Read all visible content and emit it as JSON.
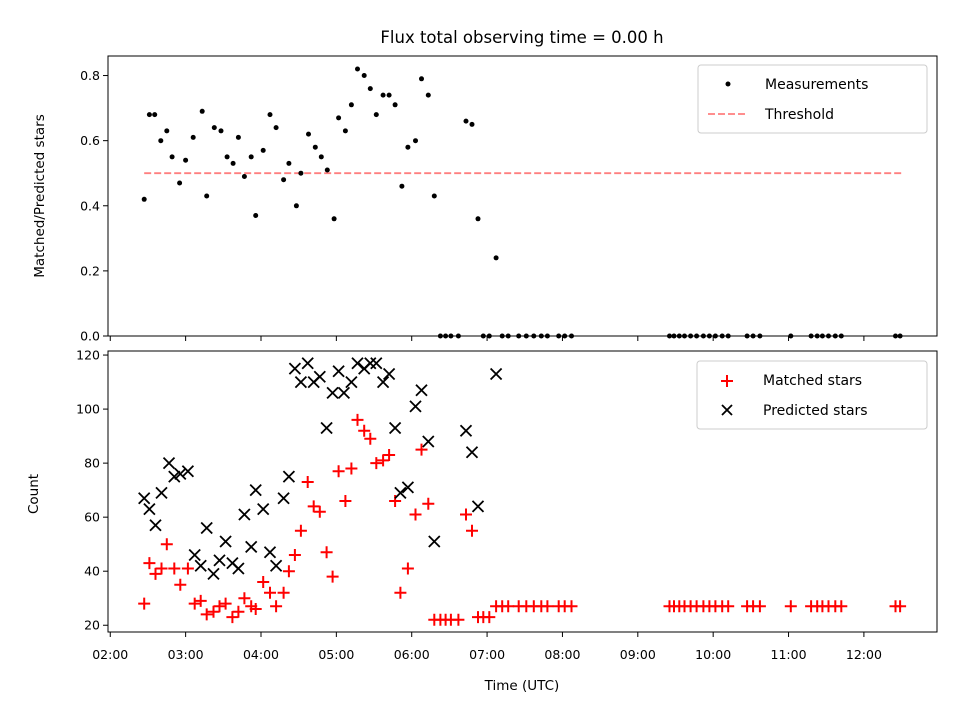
{
  "chart_data": [
    {
      "type": "scatter",
      "title": "Flux total observing time = 0.00 h",
      "xlabel": "",
      "ylabel": "Matched/Predicted stars",
      "xlim_hours": [
        1.97,
        12.97
      ],
      "ylim": [
        0.0,
        0.86
      ],
      "yticks": [
        0.0,
        0.2,
        0.4,
        0.6,
        0.8
      ],
      "ytick_labels": [
        "0.0",
        "0.2",
        "0.4",
        "0.6",
        "0.8"
      ],
      "grid": false,
      "legend_position": "top-right",
      "threshold": {
        "name": "Threshold",
        "value": 0.5,
        "x_range_hours": [
          2.45,
          12.5
        ],
        "color": "#ff7f7f"
      },
      "series": [
        {
          "name": "Measurements",
          "color": "#000000",
          "points": [
            [
              2.45,
              0.42
            ],
            [
              2.52,
              0.68
            ],
            [
              2.59,
              0.68
            ],
            [
              2.67,
              0.6
            ],
            [
              2.75,
              0.63
            ],
            [
              2.82,
              0.55
            ],
            [
              2.92,
              0.47
            ],
            [
              3.0,
              0.54
            ],
            [
              3.1,
              0.61
            ],
            [
              3.22,
              0.69
            ],
            [
              3.28,
              0.43
            ],
            [
              3.38,
              0.64
            ],
            [
              3.47,
              0.63
            ],
            [
              3.55,
              0.55
            ],
            [
              3.63,
              0.53
            ],
            [
              3.7,
              0.61
            ],
            [
              3.78,
              0.49
            ],
            [
              3.87,
              0.55
            ],
            [
              3.93,
              0.37
            ],
            [
              4.03,
              0.57
            ],
            [
              4.12,
              0.68
            ],
            [
              4.2,
              0.64
            ],
            [
              4.3,
              0.48
            ],
            [
              4.37,
              0.53
            ],
            [
              4.47,
              0.4
            ],
            [
              4.53,
              0.5
            ],
            [
              4.63,
              0.62
            ],
            [
              4.72,
              0.58
            ],
            [
              4.8,
              0.55
            ],
            [
              4.88,
              0.51
            ],
            [
              4.97,
              0.36
            ],
            [
              5.03,
              0.67
            ],
            [
              5.12,
              0.63
            ],
            [
              5.2,
              0.71
            ],
            [
              5.28,
              0.82
            ],
            [
              5.37,
              0.8
            ],
            [
              5.45,
              0.76
            ],
            [
              5.53,
              0.68
            ],
            [
              5.62,
              0.74
            ],
            [
              5.7,
              0.74
            ],
            [
              5.78,
              0.71
            ],
            [
              5.87,
              0.46
            ],
            [
              5.95,
              0.58
            ],
            [
              6.05,
              0.6
            ],
            [
              6.13,
              0.79
            ],
            [
              6.22,
              0.74
            ],
            [
              6.3,
              0.43
            ],
            [
              6.38,
              0.0
            ],
            [
              6.45,
              0.0
            ],
            [
              6.52,
              0.0
            ],
            [
              6.62,
              0.0
            ],
            [
              6.72,
              0.66
            ],
            [
              6.8,
              0.65
            ],
            [
              6.88,
              0.36
            ],
            [
              6.95,
              0.0
            ],
            [
              7.03,
              0.0
            ],
            [
              7.12,
              0.24
            ],
            [
              7.2,
              0.0
            ],
            [
              7.28,
              0.0
            ],
            [
              7.42,
              0.0
            ],
            [
              7.52,
              0.0
            ],
            [
              7.62,
              0.0
            ],
            [
              7.72,
              0.0
            ],
            [
              7.8,
              0.0
            ],
            [
              7.95,
              0.0
            ],
            [
              8.03,
              0.0
            ],
            [
              8.12,
              0.0
            ],
            [
              9.42,
              0.0
            ],
            [
              9.48,
              0.0
            ],
            [
              9.55,
              0.0
            ],
            [
              9.62,
              0.0
            ],
            [
              9.7,
              0.0
            ],
            [
              9.78,
              0.0
            ],
            [
              9.87,
              0.0
            ],
            [
              9.95,
              0.0
            ],
            [
              10.03,
              0.0
            ],
            [
              10.12,
              0.0
            ],
            [
              10.2,
              0.0
            ],
            [
              10.45,
              0.0
            ],
            [
              10.53,
              0.0
            ],
            [
              10.62,
              0.0
            ],
            [
              11.03,
              0.0
            ],
            [
              11.3,
              0.0
            ],
            [
              11.38,
              0.0
            ],
            [
              11.45,
              0.0
            ],
            [
              11.53,
              0.0
            ],
            [
              11.62,
              0.0
            ],
            [
              11.7,
              0.0
            ],
            [
              12.42,
              0.0
            ],
            [
              12.48,
              0.0
            ]
          ]
        }
      ]
    },
    {
      "type": "scatter",
      "title": "",
      "xlabel": "Time (UTC)",
      "ylabel": "Count",
      "xlim_hours": [
        1.97,
        12.97
      ],
      "ylim": [
        17.5,
        121.5
      ],
      "yticks": [
        20,
        40,
        60,
        80,
        100,
        120
      ],
      "ytick_labels": [
        "20",
        "40",
        "60",
        "80",
        "100",
        "120"
      ],
      "xticks_hours": [
        2,
        3,
        4,
        5,
        6,
        7,
        8,
        9,
        10,
        11,
        12
      ],
      "xtick_labels": [
        "02:00",
        "03:00",
        "04:00",
        "05:00",
        "06:00",
        "07:00",
        "08:00",
        "09:00",
        "10:00",
        "11:00",
        "12:00"
      ],
      "grid": false,
      "legend_position": "top-right",
      "series": [
        {
          "name": "Matched stars",
          "marker": "plus",
          "color": "#ff0000",
          "points": [
            [
              2.45,
              28
            ],
            [
              2.52,
              43
            ],
            [
              2.6,
              39
            ],
            [
              2.68,
              41
            ],
            [
              2.75,
              50
            ],
            [
              2.85,
              41
            ],
            [
              2.93,
              35
            ],
            [
              3.03,
              41
            ],
            [
              3.12,
              28
            ],
            [
              3.2,
              29
            ],
            [
              3.28,
              24
            ],
            [
              3.37,
              25
            ],
            [
              3.45,
              27
            ],
            [
              3.53,
              28
            ],
            [
              3.62,
              23
            ],
            [
              3.7,
              25
            ],
            [
              3.78,
              30
            ],
            [
              3.87,
              27
            ],
            [
              3.93,
              26
            ],
            [
              4.03,
              36
            ],
            [
              4.12,
              32
            ],
            [
              4.2,
              27
            ],
            [
              4.3,
              32
            ],
            [
              4.37,
              40
            ],
            [
              4.45,
              46
            ],
            [
              4.53,
              55
            ],
            [
              4.62,
              73
            ],
            [
              4.7,
              64
            ],
            [
              4.78,
              62
            ],
            [
              4.87,
              47
            ],
            [
              4.95,
              38
            ],
            [
              5.03,
              77
            ],
            [
              5.12,
              66
            ],
            [
              5.2,
              78
            ],
            [
              5.28,
              96
            ],
            [
              5.37,
              92
            ],
            [
              5.45,
              89
            ],
            [
              5.53,
              80
            ],
            [
              5.62,
              81
            ],
            [
              5.7,
              83
            ],
            [
              5.78,
              66
            ],
            [
              5.85,
              32
            ],
            [
              5.95,
              41
            ],
            [
              6.05,
              61
            ],
            [
              6.13,
              85
            ],
            [
              6.22,
              65
            ],
            [
              6.3,
              22
            ],
            [
              6.38,
              22
            ],
            [
              6.45,
              22
            ],
            [
              6.52,
              22
            ],
            [
              6.62,
              22
            ],
            [
              6.72,
              61
            ],
            [
              6.8,
              55
            ],
            [
              6.88,
              23
            ],
            [
              6.95,
              23
            ],
            [
              7.03,
              23
            ],
            [
              7.12,
              27
            ],
            [
              7.2,
              27
            ],
            [
              7.28,
              27
            ],
            [
              7.42,
              27
            ],
            [
              7.52,
              27
            ],
            [
              7.62,
              27
            ],
            [
              7.72,
              27
            ],
            [
              7.8,
              27
            ],
            [
              7.95,
              27
            ],
            [
              8.03,
              27
            ],
            [
              8.12,
              27
            ],
            [
              9.42,
              27
            ],
            [
              9.48,
              27
            ],
            [
              9.55,
              27
            ],
            [
              9.62,
              27
            ],
            [
              9.7,
              27
            ],
            [
              9.78,
              27
            ],
            [
              9.87,
              27
            ],
            [
              9.95,
              27
            ],
            [
              10.03,
              27
            ],
            [
              10.12,
              27
            ],
            [
              10.2,
              27
            ],
            [
              10.45,
              27
            ],
            [
              10.53,
              27
            ],
            [
              10.62,
              27
            ],
            [
              11.03,
              27
            ],
            [
              11.3,
              27
            ],
            [
              11.38,
              27
            ],
            [
              11.45,
              27
            ],
            [
              11.53,
              27
            ],
            [
              11.62,
              27
            ],
            [
              11.7,
              27
            ],
            [
              12.42,
              27
            ],
            [
              12.48,
              27
            ]
          ]
        },
        {
          "name": "Predicted stars",
          "marker": "x",
          "color": "#000000",
          "points": [
            [
              2.45,
              67
            ],
            [
              2.52,
              63
            ],
            [
              2.6,
              57
            ],
            [
              2.68,
              69
            ],
            [
              2.78,
              80
            ],
            [
              2.85,
              75
            ],
            [
              2.93,
              76
            ],
            [
              3.03,
              77
            ],
            [
              3.12,
              46
            ],
            [
              3.2,
              42
            ],
            [
              3.28,
              56
            ],
            [
              3.37,
              39
            ],
            [
              3.45,
              44
            ],
            [
              3.53,
              51
            ],
            [
              3.62,
              43
            ],
            [
              3.7,
              41
            ],
            [
              3.78,
              61
            ],
            [
              3.87,
              49
            ],
            [
              3.93,
              70
            ],
            [
              4.03,
              63
            ],
            [
              4.12,
              47
            ],
            [
              4.2,
              42
            ],
            [
              4.3,
              67
            ],
            [
              4.37,
              75
            ],
            [
              4.45,
              115
            ],
            [
              4.53,
              110
            ],
            [
              4.62,
              117
            ],
            [
              4.7,
              110
            ],
            [
              4.78,
              112
            ],
            [
              4.87,
              93
            ],
            [
              4.95,
              106
            ],
            [
              5.03,
              114
            ],
            [
              5.1,
              106
            ],
            [
              5.2,
              110
            ],
            [
              5.28,
              117
            ],
            [
              5.37,
              115
            ],
            [
              5.45,
              117
            ],
            [
              5.53,
              117
            ],
            [
              5.62,
              110
            ],
            [
              5.7,
              113
            ],
            [
              5.78,
              93
            ],
            [
              5.85,
              69
            ],
            [
              5.95,
              71
            ],
            [
              6.05,
              101
            ],
            [
              6.13,
              107
            ],
            [
              6.22,
              88
            ],
            [
              6.3,
              51
            ],
            [
              6.72,
              92
            ],
            [
              6.8,
              84
            ],
            [
              6.88,
              64
            ],
            [
              7.12,
              113
            ]
          ]
        }
      ]
    }
  ]
}
